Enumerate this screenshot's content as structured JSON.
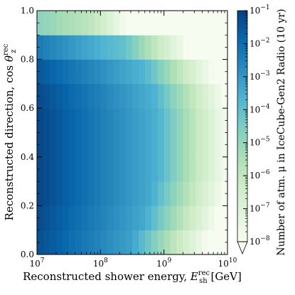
{
  "chart_data": {
    "type": "heatmap",
    "xlabel": {
      "text": "Reconstructed shower energy, ",
      "symbol": "E",
      "sub": "sh",
      "sup": "rec",
      "unit": " [GeV]"
    },
    "ylabel": {
      "text": "Reconstructed direction, cos ",
      "symbol": "θ",
      "sub": "z",
      "sup": "rec"
    },
    "x_scale": "log",
    "xlim": [
      10000000,
      10000000000
    ],
    "x_ticks": [
      {
        "value": 10000000,
        "base": "10",
        "exp": "7"
      },
      {
        "value": 100000000,
        "base": "10",
        "exp": "8"
      },
      {
        "value": 1000000000,
        "base": "10",
        "exp": "9"
      },
      {
        "value": 10000000000,
        "base": "10",
        "exp": "10"
      }
    ],
    "ylim": [
      0.0,
      1.0
    ],
    "y_ticks": [
      "0.0",
      "0.2",
      "0.4",
      "0.6",
      "0.8",
      "1.0"
    ],
    "colorbar": {
      "label": "Number of atm. μ in IceCube-Gen2 Radio (10 yr)",
      "scale": "log",
      "range": [
        1e-08,
        0.1
      ],
      "extend": "min",
      "ticks": [
        {
          "value": 0.1,
          "base": "10",
          "exp": "−1"
        },
        {
          "value": 0.01,
          "base": "10",
          "exp": "−2"
        },
        {
          "value": 0.001,
          "base": "10",
          "exp": "−3"
        },
        {
          "value": 0.0001,
          "base": "10",
          "exp": "−4"
        },
        {
          "value": 1e-05,
          "base": "10",
          "exp": "−5"
        },
        {
          "value": 1e-06,
          "base": "10",
          "exp": "−6"
        },
        {
          "value": 1e-07,
          "base": "10",
          "exp": "−7"
        },
        {
          "value": 1e-08,
          "base": "10",
          "exp": "−8"
        }
      ],
      "colormap": [
        "#f7fcf0",
        "#e0f3db",
        "#ccebc5",
        "#a8ddb5",
        "#7bccc4",
        "#4eb3d3",
        "#2b8cbe",
        "#0868ac",
        "#084081"
      ]
    },
    "x_bins_log10": {
      "start": 7.0,
      "width": 0.1,
      "count": 30
    },
    "y_bins": [
      {
        "lo": 0.0,
        "hi": 0.1,
        "peak_log10": -1.3,
        "edge_log10": 8.5
      },
      {
        "lo": 0.1,
        "hi": 0.2,
        "peak_log10": -1.2,
        "edge_log10": 8.7
      },
      {
        "lo": 0.2,
        "hi": 0.3,
        "peak_log10": -1.1,
        "edge_log10": 8.8
      },
      {
        "lo": 0.3,
        "hi": 0.4,
        "peak_log10": -1.1,
        "edge_log10": 8.9
      },
      {
        "lo": 0.4,
        "hi": 0.5,
        "peak_log10": -1.1,
        "edge_log10": 8.9
      },
      {
        "lo": 0.5,
        "hi": 0.6,
        "peak_log10": -1.1,
        "edge_log10": 8.9
      },
      {
        "lo": 0.6,
        "hi": 0.7,
        "peak_log10": -1.2,
        "edge_log10": 8.85
      },
      {
        "lo": 0.7,
        "hi": 0.8,
        "peak_log10": -1.5,
        "edge_log10": 8.7
      },
      {
        "lo": 0.8,
        "hi": 0.9,
        "peak_log10": -2.3,
        "edge_log10": 8.4
      },
      {
        "lo": 0.9,
        "hi": 1.0,
        "peak_log10": -4.8,
        "edge_log10": 7.9
      }
    ]
  }
}
